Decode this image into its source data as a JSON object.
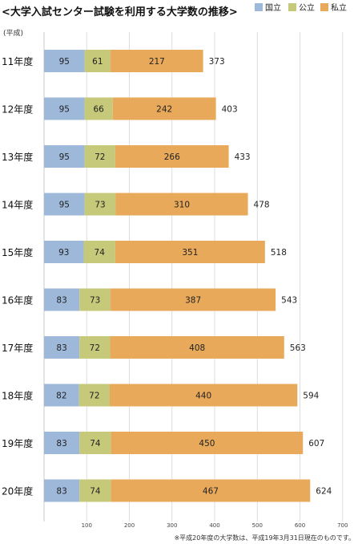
{
  "chart_data": {
    "type": "bar",
    "orientation": "horizontal",
    "stacked": true,
    "title": "<大学入試センター試験を利用する大学数の推移>",
    "era_note": "(平成)",
    "footnote": "※平成20年度の大学数は、平成19年3月31日現在のものです。",
    "categories": [
      "11年度",
      "12年度",
      "13年度",
      "14年度",
      "15年度",
      "16年度",
      "17年度",
      "18年度",
      "19年度",
      "20年度"
    ],
    "series": [
      {
        "name": "国立",
        "color": "#9db8d9",
        "values": [
          95,
          95,
          95,
          95,
          93,
          83,
          83,
          82,
          83,
          83
        ]
      },
      {
        "name": "公立",
        "color": "#c7c97a",
        "values": [
          61,
          66,
          72,
          73,
          74,
          73,
          72,
          72,
          74,
          74
        ]
      },
      {
        "name": "私立",
        "color": "#e8a95a",
        "values": [
          217,
          242,
          266,
          310,
          351,
          387,
          408,
          440,
          450,
          467
        ]
      }
    ],
    "totals": [
      373,
      403,
      433,
      478,
      518,
      543,
      563,
      594,
      607,
      624
    ],
    "xlim": [
      0,
      700
    ],
    "xticks": [
      100,
      200,
      300,
      400,
      500,
      600,
      700
    ],
    "grid": true,
    "legend_position": "top-right"
  }
}
